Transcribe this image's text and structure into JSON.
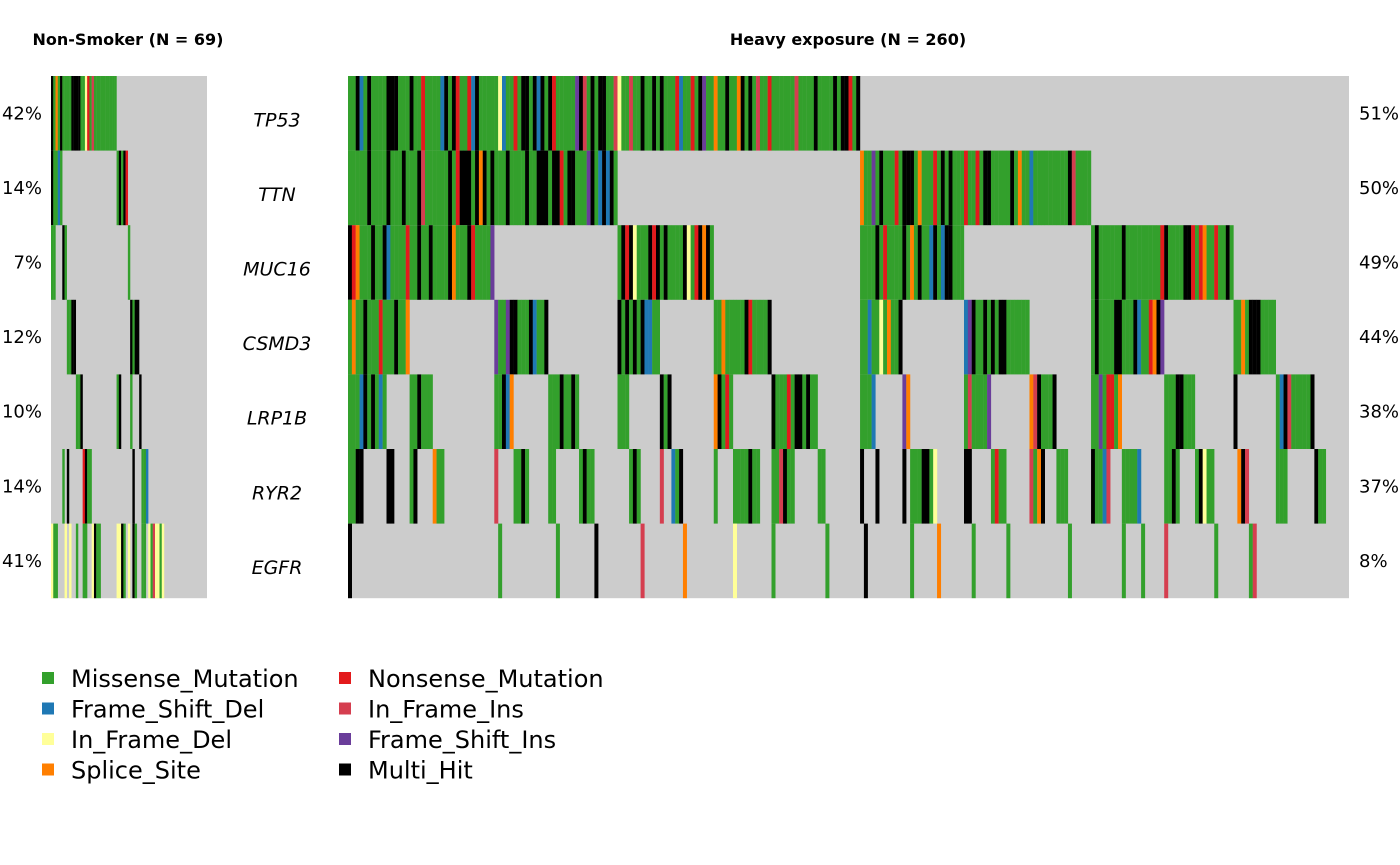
{
  "chart_data": {
    "type": "heatmap",
    "genes": [
      "TP53",
      "TTN",
      "MUC16",
      "CSMD3",
      "LRP1B",
      "RYR2",
      "EGFR"
    ],
    "groups": [
      {
        "title": "Non-Smoker (N = 69)",
        "n": 69,
        "pcts": [
          "42%",
          "14%",
          "7%",
          "12%",
          "10%",
          "14%",
          "41%"
        ],
        "pct_values": [
          42,
          14,
          7,
          12,
          10,
          14,
          41
        ],
        "pct_side": "left",
        "seed": 11
      },
      {
        "title": "Heavy exposure (N = 260)",
        "n": 260,
        "pcts": [
          "51%",
          "50%",
          "49%",
          "44%",
          "38%",
          "37%",
          "8%"
        ],
        "pct_values": [
          51,
          50,
          49,
          44,
          38,
          37,
          8
        ],
        "pct_side": "right",
        "seed": 29
      }
    ],
    "background_color": "#cccccc",
    "legend_placement": "bottom-left"
  },
  "legend": [
    {
      "label": "Missense_Mutation",
      "color": "#33a02c"
    },
    {
      "label": "Nonsense_Mutation",
      "color": "#e31a1c"
    },
    {
      "label": "Frame_Shift_Del",
      "color": "#1f78b4"
    },
    {
      "label": "In_Frame_Ins",
      "color": "#d53e4f"
    },
    {
      "label": "In_Frame_Del",
      "color": "#ffff99"
    },
    {
      "label": "Frame_Shift_Ins",
      "color": "#6a3d9a"
    },
    {
      "label": "Splice_Site",
      "color": "#ff7f00"
    },
    {
      "label": "Multi_Hit",
      "color": "#000000"
    }
  ]
}
